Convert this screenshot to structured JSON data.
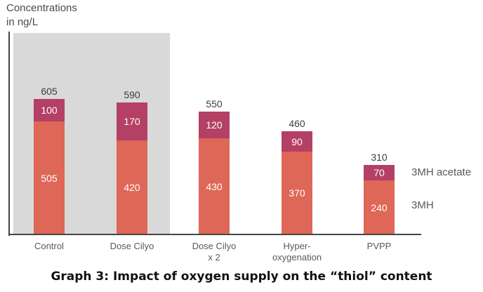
{
  "figure": {
    "axis_label": "Concentrations\nin ng/L",
    "caption": "Graph 3: Impact of oxygen supply on the “thiol” content"
  },
  "chart_data": {
    "type": "bar",
    "stacked": true,
    "title": "Graph 3: Impact of oxygen supply on the “thiol” content",
    "ylabel": "Concentrations in ng/L",
    "ylim": [
      0,
      900
    ],
    "grid": false,
    "legend_position": "right",
    "categories": [
      "Control",
      "Dose Cilyo",
      "Dose Cilyo\nx 2",
      "Hyper-\noxygenation",
      "PVPP"
    ],
    "series": [
      {
        "name": "3MH",
        "color": "#df6757",
        "values": [
          505,
          420,
          430,
          370,
          240
        ]
      },
      {
        "name": "3MH acetate",
        "color": "#b44065",
        "values": [
          100,
          170,
          120,
          90,
          70
        ]
      }
    ],
    "totals": [
      605,
      590,
      550,
      460,
      310
    ],
    "highlighted_categories": [
      "Control",
      "Dose Cilyo"
    ],
    "colors": {
      "highlight_panel": "#d9d9d9",
      "axis": "#454545",
      "segment_value_text": "#ffffff",
      "total_text": "#3d3d3d",
      "category_text": "#595959",
      "legend_text": "#595959"
    }
  }
}
